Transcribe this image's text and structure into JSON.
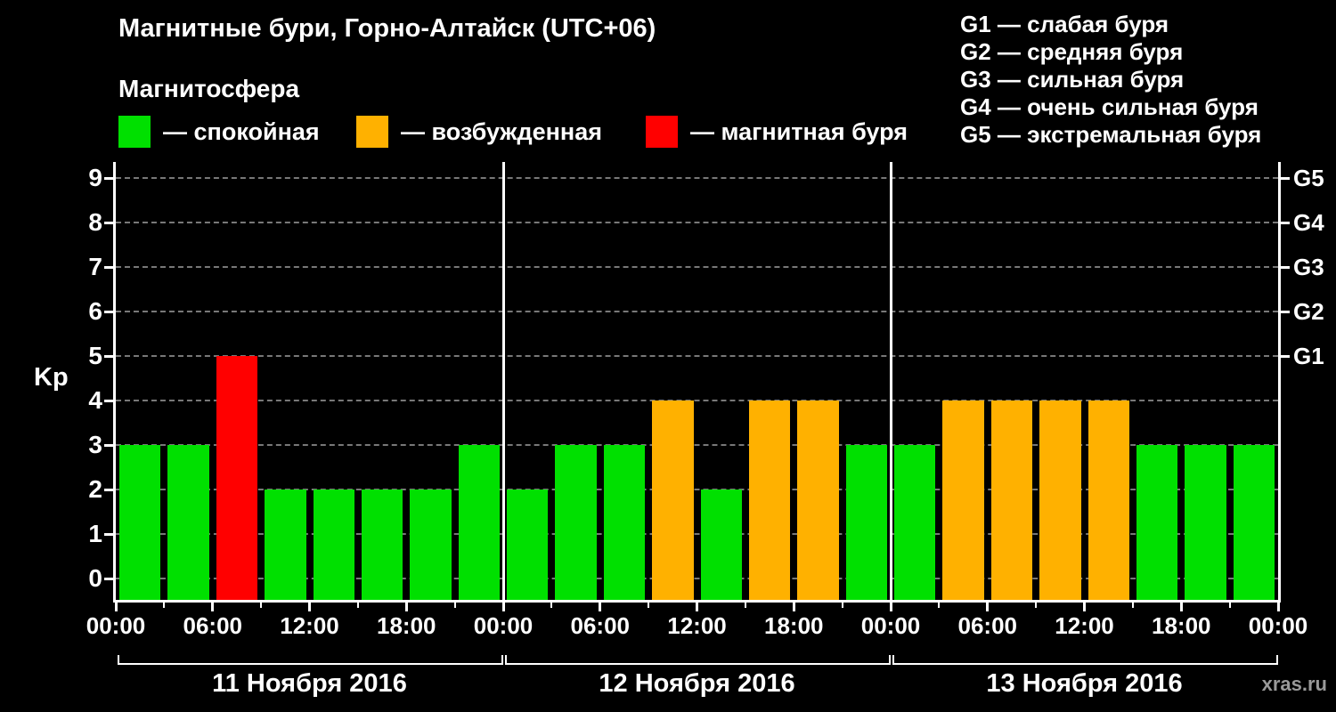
{
  "header": {
    "title": "Магнитные бури, Горно-Алтайск (UTC+06)",
    "legend_title": "Магнитосфера"
  },
  "kp_legend": {
    "items": [
      {
        "label": "— спокойная",
        "color": "#00e000"
      },
      {
        "label": "— возбужденная",
        "color": "#ffb100"
      },
      {
        "label": "— магнитная буря",
        "color": "#ff0000"
      }
    ]
  },
  "g_legend": {
    "items": [
      "G1 — слабая буря",
      "G2 — средняя буря",
      "G3 — сильная буря",
      "G4 — очень сильная буря",
      "G5 — экстремальная буря"
    ]
  },
  "axis": {
    "ylabel": "Kp"
  },
  "watermark": "xras.ru",
  "chart_data": {
    "type": "bar",
    "title": "Магнитные бури, Горно-Алтайск (UTC+06)",
    "ylabel": "Kp",
    "ylim": [
      0,
      9
    ],
    "yticks": [
      0,
      1,
      2,
      3,
      4,
      5,
      6,
      7,
      8,
      9
    ],
    "grid": true,
    "legend_position": "top",
    "bar_interval_hours": 3,
    "tick_step_hours": 6,
    "x_tick_labels": [
      "00:00",
      "06:00",
      "12:00",
      "18:00",
      "00:00",
      "06:00",
      "12:00",
      "18:00",
      "00:00",
      "06:00",
      "12:00",
      "18:00",
      "00:00"
    ],
    "days": [
      {
        "date": "11 Ноября 2016",
        "values": [
          3,
          3,
          5,
          2,
          2,
          2,
          2,
          3
        ]
      },
      {
        "date": "12 Ноября 2016",
        "values": [
          2,
          3,
          3,
          4,
          2,
          4,
          4,
          3
        ]
      },
      {
        "date": "13 Ноября 2016",
        "values": [
          3,
          4,
          4,
          4,
          4,
          3,
          3,
          3
        ]
      }
    ],
    "color_map": {
      "quiet": "#00e000",
      "excited": "#ffb100",
      "storm": "#ff0000"
    },
    "thresholds": {
      "excited_min": 4,
      "storm_min": 5
    },
    "right_axis_ticks": [
      {
        "label": "G1",
        "kp": 5
      },
      {
        "label": "G2",
        "kp": 6
      },
      {
        "label": "G3",
        "kp": 7
      },
      {
        "label": "G4",
        "kp": 8
      },
      {
        "label": "G5",
        "kp": 9
      }
    ]
  }
}
